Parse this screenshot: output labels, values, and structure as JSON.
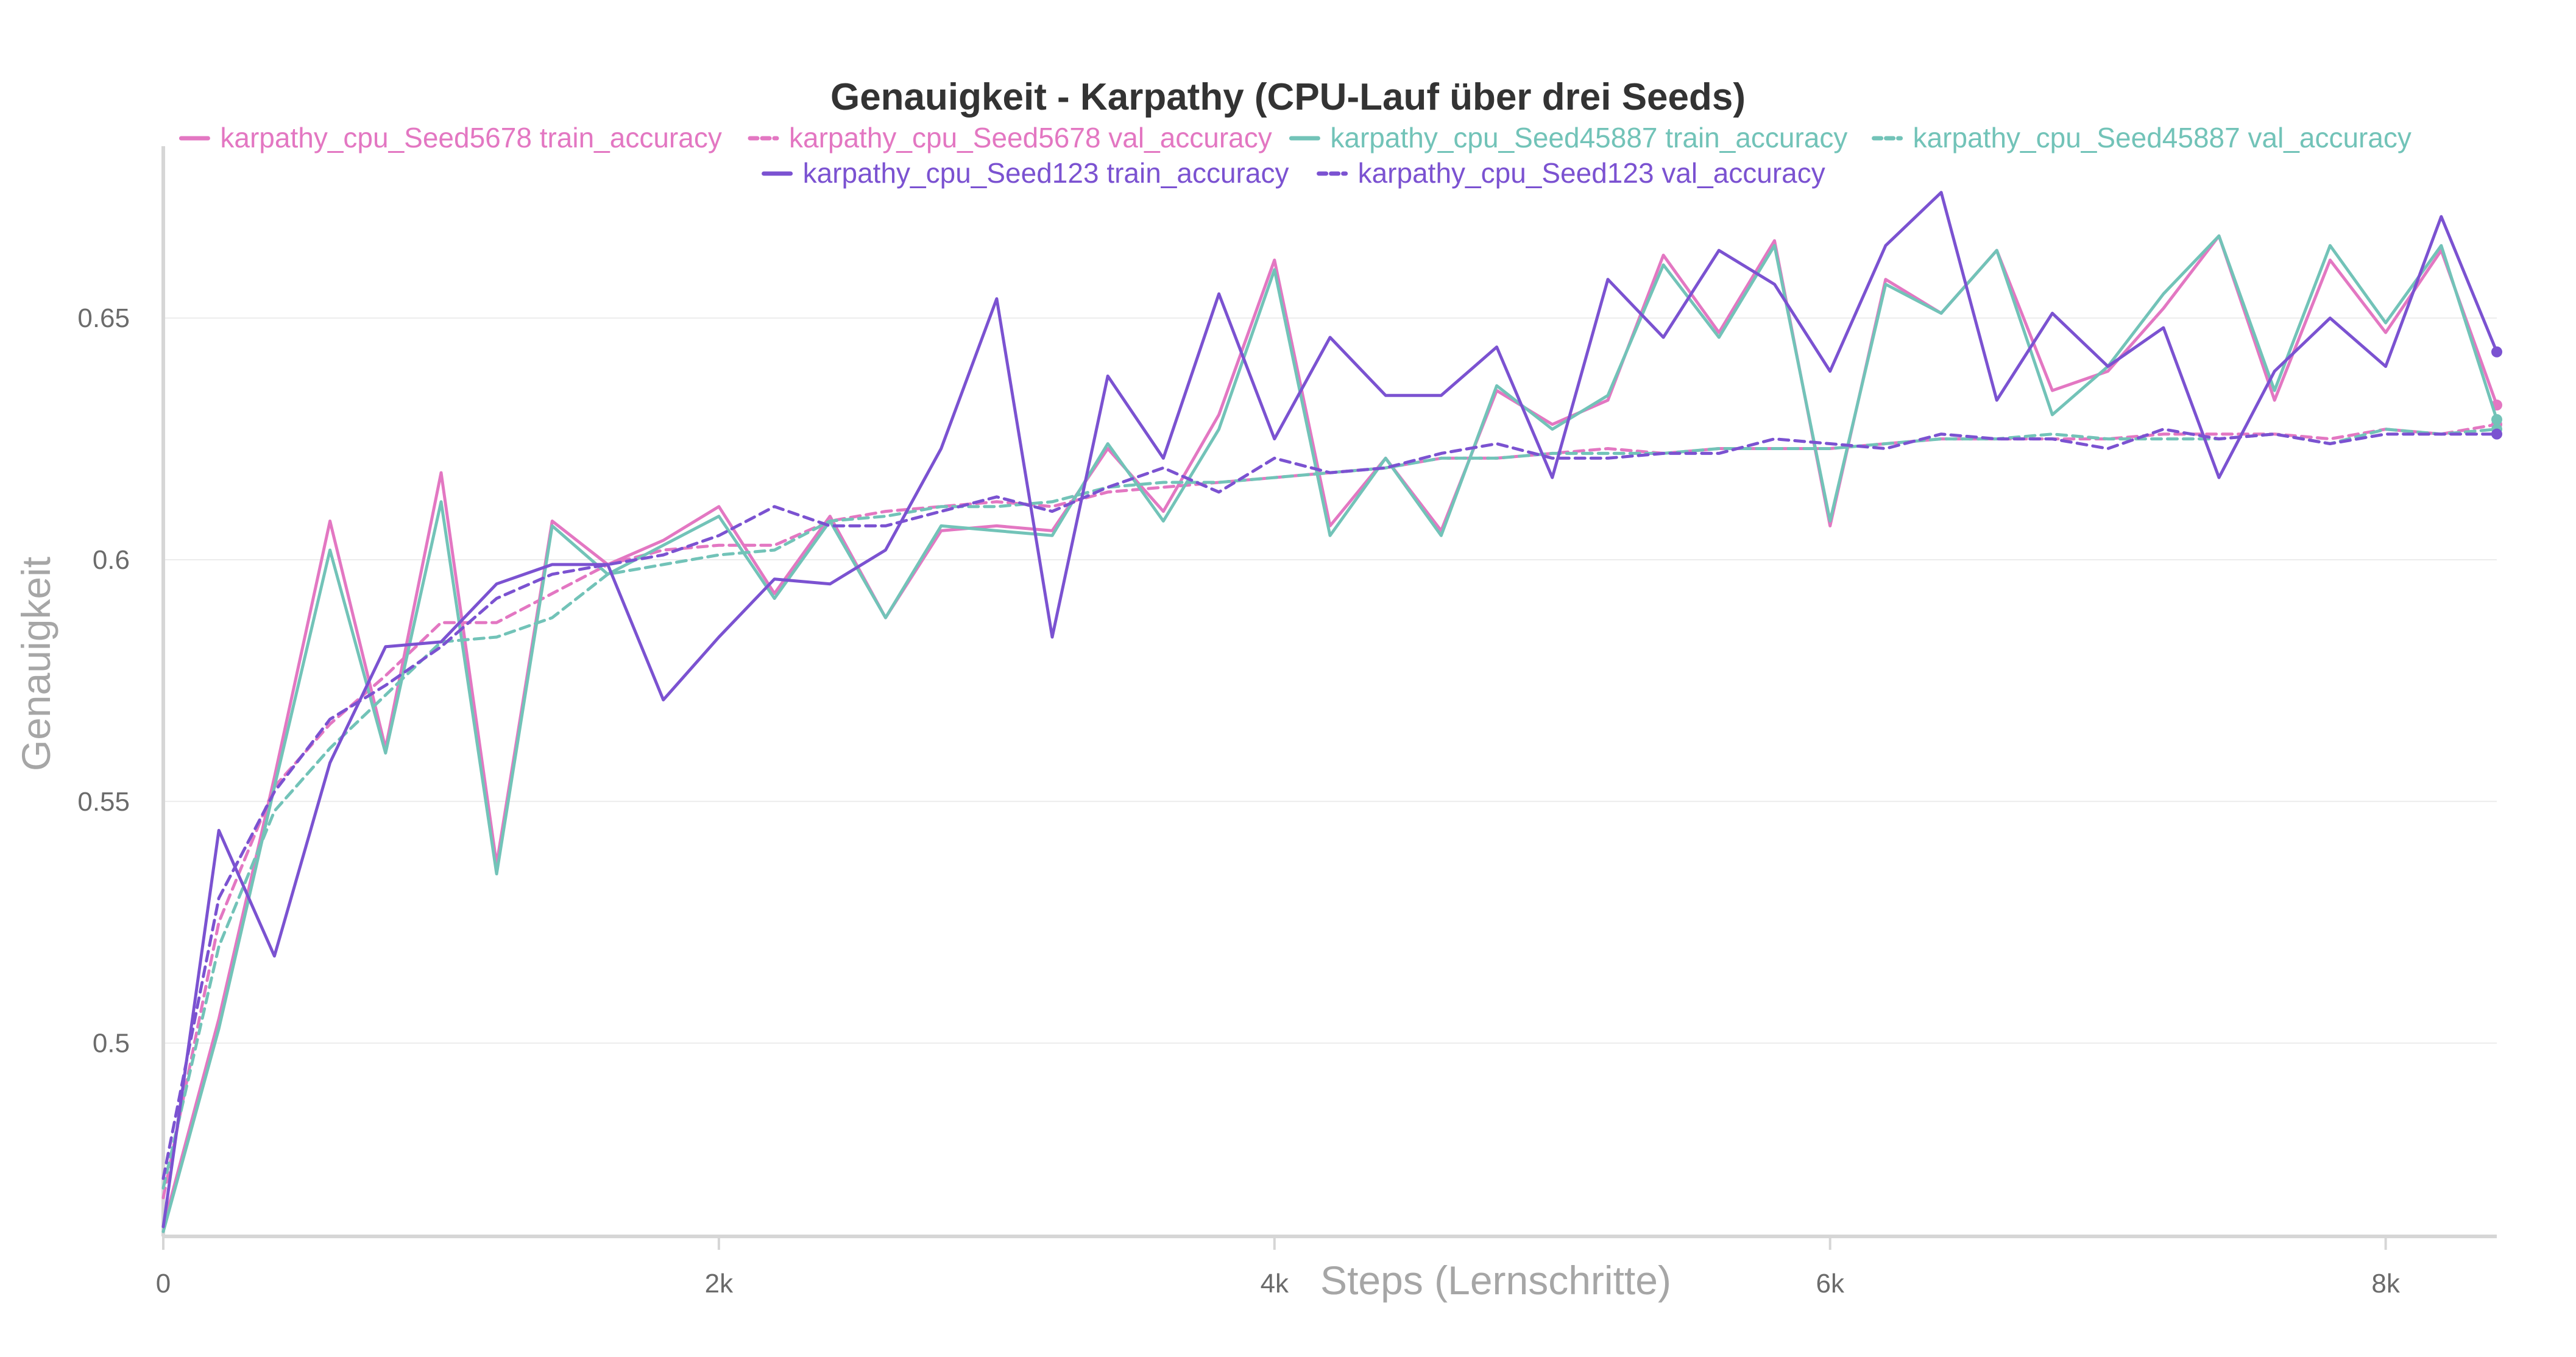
{
  "chart_data": {
    "type": "line",
    "title": "Genauigkeit - Karpathy (CPU-Lauf über drei Seeds)",
    "xlabel": "Steps (Lernschritte)",
    "ylabel": "Genauigkeit",
    "xlim": [
      0,
      8400
    ],
    "ylim": [
      0.46,
      0.678
    ],
    "x_ticks": [
      0,
      2000,
      4000,
      6000,
      8000
    ],
    "x_tick_labels": [
      "0",
      "2k",
      "4k",
      "6k",
      "8k"
    ],
    "y_ticks": [
      0.5,
      0.55,
      0.6,
      0.65
    ],
    "y_tick_labels": [
      "0.5",
      "0.55",
      "0.6",
      "0.65"
    ],
    "grid": true,
    "legend_position": "top-center",
    "x": [
      0,
      200,
      400,
      600,
      800,
      1000,
      1200,
      1400,
      1600,
      1800,
      2000,
      2200,
      2400,
      2600,
      2800,
      3000,
      3200,
      3400,
      3600,
      3800,
      4000,
      4200,
      4400,
      4600,
      4800,
      5000,
      5200,
      5400,
      5600,
      5800,
      6000,
      6200,
      6400,
      6600,
      6800,
      7000,
      7200,
      7400,
      7600,
      7800,
      8000,
      8200,
      8400
    ],
    "series": [
      {
        "name": "karpathy_cpu_Seed5678 train_accuracy",
        "color": "#e377c2",
        "dash": false,
        "values": [
          0.462,
          0.505,
          0.555,
          0.608,
          0.561,
          0.618,
          0.537,
          0.608,
          0.599,
          0.604,
          0.611,
          0.593,
          0.609,
          0.588,
          0.606,
          0.607,
          0.606,
          0.623,
          0.61,
          0.63,
          0.662,
          0.607,
          0.621,
          0.606,
          0.635,
          0.628,
          0.633,
          0.663,
          0.647,
          0.666,
          0.607,
          0.658,
          0.651,
          0.664,
          0.635,
          0.639,
          0.652,
          0.667,
          0.633,
          0.662,
          0.647,
          0.664,
          0.632
        ]
      },
      {
        "name": "karpathy_cpu_Seed5678 val_accuracy",
        "color": "#e377c2",
        "dash": true,
        "values": [
          0.468,
          0.525,
          0.553,
          0.566,
          0.576,
          0.587,
          0.587,
          0.593,
          0.599,
          0.602,
          0.603,
          0.603,
          0.608,
          0.61,
          0.611,
          0.612,
          0.611,
          0.614,
          0.615,
          0.616,
          0.617,
          0.618,
          0.619,
          0.621,
          0.621,
          0.622,
          0.623,
          0.622,
          0.623,
          0.623,
          0.623,
          0.624,
          0.625,
          0.625,
          0.625,
          0.625,
          0.626,
          0.626,
          0.626,
          0.625,
          0.627,
          0.626,
          0.628
        ]
      },
      {
        "name": "karpathy_cpu_Seed45887 train_accuracy",
        "color": "#72c3b8",
        "dash": false,
        "values": [
          0.461,
          0.503,
          0.553,
          0.602,
          0.56,
          0.612,
          0.535,
          0.607,
          0.597,
          0.603,
          0.609,
          0.592,
          0.608,
          0.588,
          0.607,
          0.606,
          0.605,
          0.624,
          0.608,
          0.627,
          0.66,
          0.605,
          0.621,
          0.605,
          0.636,
          0.627,
          0.634,
          0.661,
          0.646,
          0.665,
          0.608,
          0.657,
          0.651,
          0.664,
          0.63,
          0.64,
          0.655,
          0.667,
          0.635,
          0.665,
          0.649,
          0.665,
          0.629
        ]
      },
      {
        "name": "karpathy_cpu_Seed45887 val_accuracy",
        "color": "#72c3b8",
        "dash": true,
        "values": [
          0.47,
          0.52,
          0.548,
          0.561,
          0.572,
          0.583,
          0.584,
          0.588,
          0.597,
          0.599,
          0.601,
          0.602,
          0.608,
          0.609,
          0.611,
          0.611,
          0.612,
          0.615,
          0.616,
          0.616,
          0.617,
          0.618,
          0.619,
          0.621,
          0.621,
          0.622,
          0.622,
          0.622,
          0.623,
          0.623,
          0.623,
          0.624,
          0.625,
          0.625,
          0.626,
          0.625,
          0.625,
          0.625,
          0.626,
          0.624,
          0.627,
          0.626,
          0.627
        ]
      },
      {
        "name": "karpathy_cpu_Seed123 train_accuracy",
        "color": "#7b52d1",
        "dash": false,
        "values": [
          0.462,
          0.544,
          0.518,
          0.558,
          0.582,
          0.583,
          0.595,
          0.599,
          0.599,
          0.571,
          0.584,
          0.596,
          0.595,
          0.602,
          0.623,
          0.654,
          0.584,
          0.638,
          0.621,
          0.655,
          0.625,
          0.646,
          0.634,
          0.634,
          0.644,
          0.617,
          0.658,
          0.646,
          0.664,
          0.657,
          0.639,
          0.665,
          0.676,
          0.633,
          0.651,
          0.64,
          0.648,
          0.617,
          0.639,
          0.65,
          0.64,
          0.671,
          0.643
        ]
      },
      {
        "name": "karpathy_cpu_Seed123 val_accuracy",
        "color": "#7b52d1",
        "dash": true,
        "values": [
          0.472,
          0.53,
          0.552,
          0.567,
          0.574,
          0.582,
          0.592,
          0.597,
          0.599,
          0.601,
          0.605,
          0.611,
          0.607,
          0.607,
          0.61,
          0.613,
          0.61,
          0.615,
          0.619,
          0.614,
          0.621,
          0.618,
          0.619,
          0.622,
          0.624,
          0.621,
          0.621,
          0.622,
          0.622,
          0.625,
          0.624,
          0.623,
          0.626,
          0.625,
          0.625,
          0.623,
          0.627,
          0.625,
          0.626,
          0.624,
          0.626,
          0.626,
          0.626
        ]
      }
    ]
  }
}
